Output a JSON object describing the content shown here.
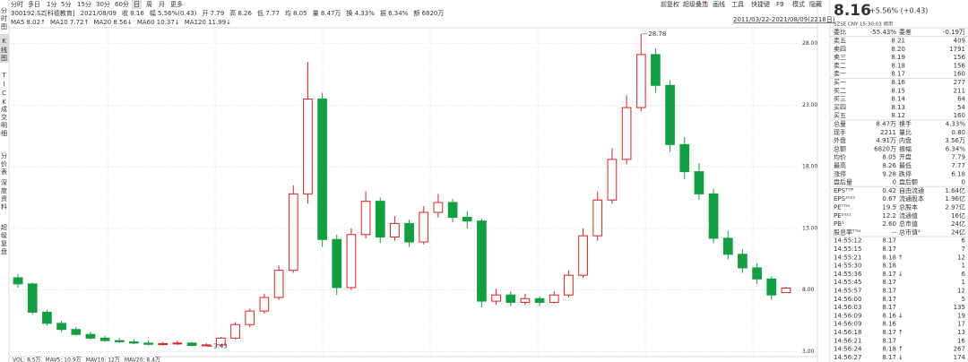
{
  "toolbar": {
    "tabs": [
      "分时",
      "多日",
      "1分",
      "5分",
      "15分",
      "30分",
      "60分",
      "日",
      "周",
      "月",
      "更多"
    ],
    "tools": [
      "前复权",
      "超级叠加",
      "画线",
      "工具",
      "快捷键",
      "F9",
      "模式",
      "隐藏"
    ]
  },
  "info_bar": [
    "300192.SZ[科德教育]",
    "2021/08/09",
    "收 8.16",
    "幅 5.56%(0.43)",
    "开 7.79",
    "高 8.26",
    "低 7.77",
    "均 8.05",
    "量 8.47万",
    "换 4.33%",
    "振 6.34%",
    "额 6820万"
  ],
  "ma_bar": [
    {
      "text": "MA5 8.02↑",
      "color": "#d03030"
    },
    {
      "text": "MA10 7.72↑",
      "color": "#2060d0"
    },
    {
      "text": "MA20 8.56↓",
      "color": "#203080"
    },
    {
      "text": "MA60 10.37↓",
      "color": "#20a0c0"
    },
    {
      "text": "MA120 11.99↓",
      "color": "#30a030"
    }
  ],
  "side_tabs": [
    "分时图",
    "K线图",
    "TICK",
    "成交明细",
    "分价表",
    "深度资料",
    "超级复盘"
  ],
  "date_range": "2011/03/22-2021/08/09(2218日)",
  "volume_bar": [
    {
      "text": "VOL: 8.5万",
      "color": "#333333"
    },
    {
      "text": "MAV5: 10.9万",
      "color": "#2060d0"
    },
    {
      "text": "MAV10: 12万",
      "color": "#d03030"
    },
    {
      "text": "MAV20: 8.4万",
      "color": "#30a0a0"
    }
  ],
  "chart_data": {
    "type": "candlestick",
    "up_color": "#e02020",
    "down_color": "#10a040",
    "grid": true,
    "ylim": [
      2.6,
      29.2
    ],
    "yticks": [
      {
        "value": 28,
        "label": "28.00"
      },
      {
        "value": 23,
        "label": "23.00"
      },
      {
        "value": 18,
        "label": "18.00"
      },
      {
        "value": 13,
        "label": "13.00"
      },
      {
        "value": 8,
        "label": "8.00"
      },
      {
        "value": 3,
        "label": "3.00"
      }
    ],
    "open": [
      9.0,
      8.5,
      6.2,
      5.3,
      4.8,
      4.4,
      4.1,
      3.9,
      3.8,
      3.7,
      3.6,
      3.65,
      3.7,
      3.5,
      3.55,
      4.1,
      5.2,
      6.3,
      7.4,
      9.6,
      15.8,
      23.5,
      12.1,
      8.2,
      12.5,
      15.2,
      12.3,
      13.4,
      11.9,
      14.3,
      15.1,
      13.9,
      13.6,
      7.1,
      7.6,
      7.0,
      7.3,
      7.0,
      7.6,
      9.2,
      12.4,
      15.3,
      18.6,
      22.8,
      27.1,
      24.6,
      19.8,
      17.6,
      15.8,
      12.2,
      10.9,
      9.8,
      8.9,
      7.79
    ],
    "close": [
      8.5,
      6.2,
      5.3,
      4.8,
      4.4,
      4.1,
      3.9,
      3.8,
      3.7,
      3.6,
      3.65,
      3.7,
      3.5,
      3.55,
      4.1,
      5.2,
      6.3,
      7.4,
      9.6,
      15.8,
      23.5,
      12.1,
      8.2,
      12.5,
      15.2,
      12.3,
      13.4,
      11.9,
      14.3,
      15.1,
      13.9,
      13.6,
      7.1,
      7.6,
      7.0,
      7.3,
      7.0,
      7.6,
      9.2,
      12.4,
      15.3,
      18.6,
      22.8,
      27.1,
      24.6,
      19.8,
      17.6,
      15.8,
      12.2,
      10.9,
      9.8,
      8.9,
      7.6,
      8.16
    ],
    "high": [
      9.3,
      8.6,
      6.4,
      5.5,
      5.0,
      4.6,
      4.3,
      4.1,
      4.0,
      3.9,
      3.8,
      3.9,
      3.8,
      3.7,
      4.2,
      5.4,
      6.5,
      7.7,
      10.0,
      16.5,
      26.5,
      24.0,
      12.5,
      13.0,
      16.0,
      15.5,
      14.0,
      13.7,
      14.8,
      15.8,
      15.4,
      14.4,
      13.8,
      8.1,
      7.9,
      7.7,
      7.5,
      7.9,
      9.6,
      13.0,
      16.0,
      19.5,
      23.8,
      28.78,
      27.6,
      25.0,
      20.4,
      18.3,
      16.2,
      12.8,
      11.3,
      10.2,
      9.1,
      8.26
    ],
    "low": [
      8.2,
      6.0,
      5.1,
      4.6,
      4.3,
      4.0,
      3.8,
      3.7,
      3.6,
      3.5,
      3.5,
      3.55,
      3.45,
      3.43,
      3.5,
      4.0,
      5.0,
      6.1,
      7.2,
      9.4,
      15.0,
      11.5,
      7.6,
      8.0,
      12.2,
      11.8,
      12.0,
      11.5,
      11.7,
      13.9,
      13.5,
      13.0,
      6.6,
      6.8,
      6.7,
      6.8,
      6.7,
      6.9,
      7.4,
      9.0,
      12.0,
      15.0,
      18.2,
      22.5,
      24.0,
      19.2,
      17.0,
      15.3,
      11.8,
      10.5,
      9.4,
      8.5,
      7.2,
      7.77
    ]
  },
  "quote": {
    "price": "8.16",
    "change": "+5.56% (+0.43)",
    "status": "SZSE  CNY  15:30:03  闭市"
  },
  "order_ratio": [
    "委比",
    "-55.43%",
    "委差",
    "-0.19万"
  ],
  "asks": [
    [
      "卖五",
      "8.21",
      "409"
    ],
    [
      "卖四",
      "8.20",
      "1791"
    ],
    [
      "卖三",
      "8.19",
      "156"
    ],
    [
      "卖二",
      "8.18",
      "156"
    ],
    [
      "卖一",
      "8.17",
      "160"
    ]
  ],
  "bids": [
    [
      "买一",
      "8.16",
      "277"
    ],
    [
      "买二",
      "8.15",
      "211"
    ],
    [
      "买三",
      "8.14",
      "64"
    ],
    [
      "买四",
      "8.13",
      "54"
    ],
    [
      "买五",
      "8.12",
      "160"
    ]
  ],
  "stats": [
    [
      "总量",
      "8.47万",
      "换手",
      "4.33%"
    ],
    [
      "现手",
      "2211",
      "量比",
      "0.80"
    ],
    [
      "外盘",
      "4.91万",
      "内盘",
      "3.56万"
    ],
    [
      "总额",
      "6820万",
      "振幅",
      "6.34%"
    ],
    [
      "均价",
      "8.05",
      "开盘",
      "7.79"
    ],
    [
      "最高",
      "8.26",
      "最低",
      "7.77"
    ],
    [
      "涨停",
      "9.28",
      "跌停",
      "6.18"
    ],
    [
      "盘后量",
      "0",
      "盘后额",
      "0"
    ],
    [
      "EPSᵀᵀᴹ",
      "0.42",
      "自由流通",
      "1.64亿"
    ],
    [
      "EPS²⁰²¹",
      "0.67",
      "流通股本",
      "1.96亿"
    ],
    [
      "PEᵀᵀᴹ",
      "19.5",
      "总股本",
      "2.97亿"
    ],
    [
      "PE²⁰²¹",
      "12.2",
      "流通值",
      "16亿"
    ],
    [
      "PB¹",
      "2.60",
      "总市值",
      "24亿"
    ],
    [
      "股息率ᵀᵀᴹ",
      "--",
      "总市值²",
      "24亿"
    ]
  ],
  "ticks": [
    {
      "time": "14:55:12",
      "price": "8.17",
      "arrow": "",
      "volume": "6",
      "color": "#10a040"
    },
    {
      "time": "14:55:15",
      "price": "8.17",
      "arrow": "",
      "volume": "7",
      "color": "#10a040"
    },
    {
      "time": "14:55:21",
      "price": "8.18",
      "arrow": "↑",
      "volume": "12",
      "color": "#e02020"
    },
    {
      "time": "14:55:30",
      "price": "8.18",
      "arrow": "",
      "volume": "1",
      "color": "#e02020"
    },
    {
      "time": "14:55:36",
      "price": "8.17",
      "arrow": "↓",
      "volume": "6",
      "color": "#10a040"
    },
    {
      "time": "14:55:45",
      "price": "8.17",
      "arrow": "",
      "volume": "1",
      "color": "#10a040"
    },
    {
      "time": "14:55:57",
      "price": "8.17",
      "arrow": "",
      "volume": "12",
      "color": "#10a040"
    },
    {
      "time": "14:56:00",
      "price": "8.17",
      "arrow": "",
      "volume": "5",
      "color": "#10a040"
    },
    {
      "time": "14:56:03",
      "price": "8.17",
      "arrow": "",
      "volume": "135",
      "color": "#10a040"
    },
    {
      "time": "14:56:09",
      "price": "8.16",
      "arrow": "↓",
      "volume": "19",
      "color": "#10a040"
    },
    {
      "time": "14:56:09",
      "price": "8.16",
      "arrow": "",
      "volume": "17",
      "color": "#10a040"
    },
    {
      "time": "14:56:18",
      "price": "8.17",
      "arrow": "↑",
      "volume": "13",
      "color": "#e02020"
    },
    {
      "time": "14:56:21",
      "price": "8.17",
      "arrow": "",
      "volume": "16",
      "color": "#e02020"
    },
    {
      "time": "14:56:24",
      "price": "8.18",
      "arrow": "↑",
      "volume": "267",
      "color": "#e02020"
    },
    {
      "time": "14:56:27",
      "price": "8.17",
      "arrow": "↓",
      "volume": "174",
      "color": "#10a040"
    }
  ]
}
